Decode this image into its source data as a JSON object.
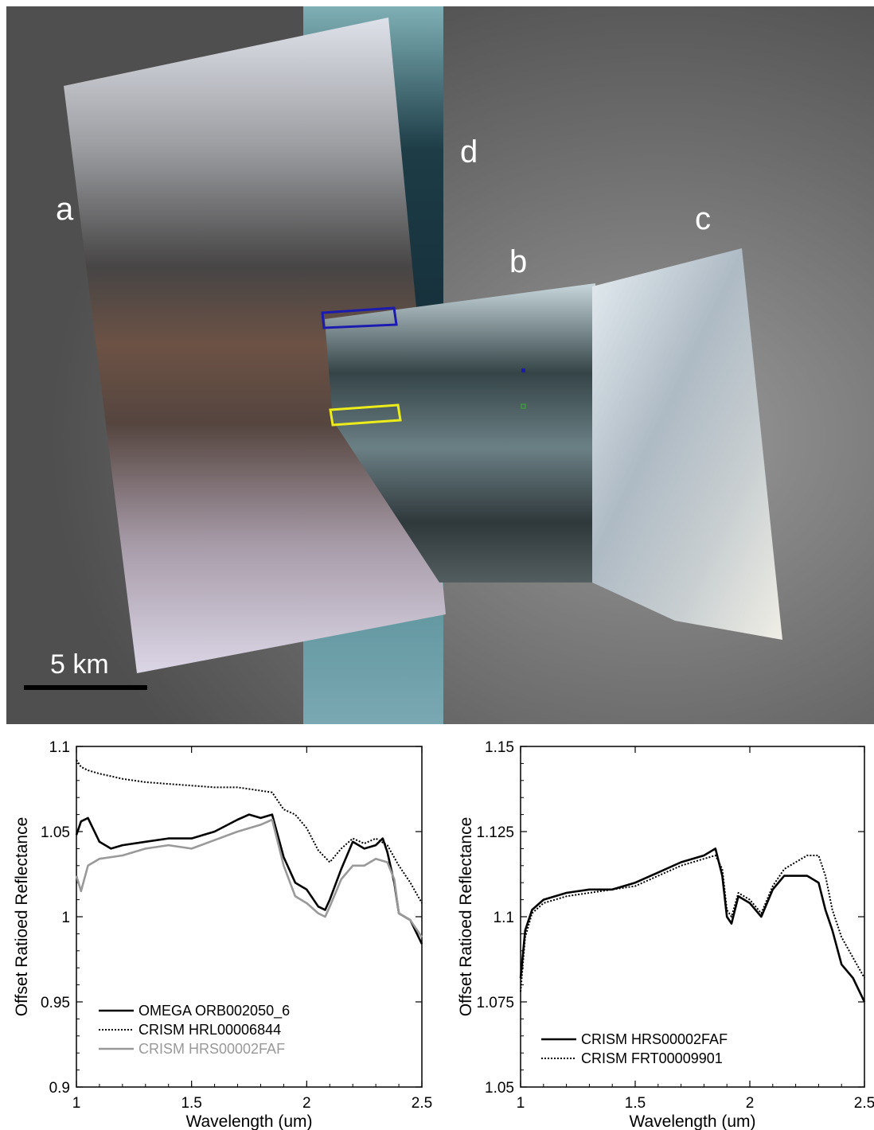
{
  "map": {
    "labels": {
      "a": "a",
      "b": "b",
      "c": "c",
      "d": "d"
    },
    "scale_bar_label": "5 km",
    "colors": {
      "background": "#5b5b5b",
      "box_blue": "#1b1bb0",
      "box_yellow": "#ecec1a",
      "marker_blue": "#1b1bb0",
      "marker_green": "#3c9a3c"
    }
  },
  "chart_data": [
    {
      "type": "line",
      "xlabel": "Wavelength (um)",
      "ylabel": "Offset Ratioed Reflectance",
      "xlim": [
        1,
        2.5
      ],
      "ylim": [
        0.9,
        1.1
      ],
      "xticks": [
        "1",
        "1.5",
        "2",
        "2.5"
      ],
      "yticks": [
        "0.9",
        "0.95",
        "1",
        "1.05",
        "1.1"
      ],
      "legend_position": "bottom-left",
      "series": [
        {
          "name": "OMEGA ORB002050_6",
          "color": "#000000",
          "style": "solid",
          "x": [
            1.0,
            1.02,
            1.05,
            1.1,
            1.15,
            1.2,
            1.3,
            1.4,
            1.5,
            1.6,
            1.7,
            1.75,
            1.8,
            1.85,
            1.9,
            1.95,
            2.0,
            2.05,
            2.08,
            2.1,
            2.15,
            2.2,
            2.25,
            2.3,
            2.33,
            2.35,
            2.38,
            2.4,
            2.45,
            2.5
          ],
          "y": [
            1.048,
            1.056,
            1.058,
            1.044,
            1.04,
            1.042,
            1.044,
            1.046,
            1.046,
            1.05,
            1.057,
            1.06,
            1.058,
            1.06,
            1.035,
            1.02,
            1.016,
            1.006,
            1.004,
            1.01,
            1.028,
            1.044,
            1.04,
            1.042,
            1.046,
            1.038,
            1.02,
            1.002,
            0.998,
            0.984
          ]
        },
        {
          "name": "CRISM HRL00006844",
          "color": "#000000",
          "style": "dotted",
          "x": [
            1.0,
            1.02,
            1.05,
            1.1,
            1.2,
            1.3,
            1.4,
            1.5,
            1.6,
            1.7,
            1.8,
            1.85,
            1.9,
            1.95,
            2.0,
            2.05,
            2.1,
            2.15,
            2.2,
            2.25,
            2.3,
            2.35,
            2.4,
            2.45,
            2.5
          ],
          "y": [
            1.092,
            1.088,
            1.086,
            1.084,
            1.081,
            1.079,
            1.078,
            1.077,
            1.076,
            1.076,
            1.074,
            1.073,
            1.063,
            1.06,
            1.052,
            1.039,
            1.032,
            1.04,
            1.046,
            1.043,
            1.046,
            1.042,
            1.03,
            1.02,
            1.008
          ]
        },
        {
          "name": "CRISM HRS00002FAF",
          "color": "#999999",
          "style": "solid",
          "x": [
            1.0,
            1.02,
            1.05,
            1.1,
            1.2,
            1.3,
            1.4,
            1.5,
            1.6,
            1.7,
            1.8,
            1.85,
            1.9,
            1.95,
            2.0,
            2.05,
            2.08,
            2.1,
            2.15,
            2.2,
            2.25,
            2.3,
            2.35,
            2.38,
            2.4,
            2.45,
            2.5
          ],
          "y": [
            1.024,
            1.015,
            1.03,
            1.034,
            1.036,
            1.04,
            1.042,
            1.04,
            1.045,
            1.05,
            1.054,
            1.057,
            1.03,
            1.012,
            1.008,
            1.002,
            1.0,
            1.006,
            1.022,
            1.03,
            1.03,
            1.034,
            1.032,
            1.022,
            1.002,
            0.998,
            0.988
          ]
        }
      ]
    },
    {
      "type": "line",
      "xlabel": "Wavelength (um)",
      "ylabel": "Offset Ratioed Reflectance",
      "xlim": [
        1,
        2.5
      ],
      "ylim": [
        1.05,
        1.15
      ],
      "xticks": [
        "1",
        "1.5",
        "2",
        "2.5"
      ],
      "yticks": [
        "1.05",
        "1.075",
        "1.1",
        "1.125",
        "1.15"
      ],
      "legend_position": "bottom-left",
      "series": [
        {
          "name": "CRISM HRS00002FAF",
          "color": "#000000",
          "style": "solid",
          "x": [
            1.0,
            1.02,
            1.05,
            1.1,
            1.2,
            1.3,
            1.4,
            1.5,
            1.6,
            1.7,
            1.8,
            1.85,
            1.88,
            1.9,
            1.92,
            1.95,
            2.0,
            2.05,
            2.1,
            2.15,
            2.2,
            2.25,
            2.3,
            2.33,
            2.36,
            2.4,
            2.45,
            2.5
          ],
          "y": [
            1.082,
            1.096,
            1.102,
            1.105,
            1.107,
            1.108,
            1.108,
            1.11,
            1.113,
            1.116,
            1.118,
            1.12,
            1.112,
            1.1,
            1.098,
            1.106,
            1.104,
            1.1,
            1.108,
            1.112,
            1.112,
            1.112,
            1.11,
            1.102,
            1.096,
            1.086,
            1.082,
            1.075
          ]
        },
        {
          "name": "CRISM FRT00009901",
          "color": "#000000",
          "style": "dotted",
          "x": [
            1.0,
            1.02,
            1.05,
            1.1,
            1.2,
            1.3,
            1.4,
            1.5,
            1.6,
            1.7,
            1.8,
            1.85,
            1.88,
            1.9,
            1.92,
            1.95,
            2.0,
            2.05,
            2.1,
            2.15,
            2.2,
            2.25,
            2.3,
            2.33,
            2.36,
            2.4,
            2.45,
            2.5
          ],
          "y": [
            1.078,
            1.094,
            1.101,
            1.104,
            1.106,
            1.107,
            1.108,
            1.109,
            1.112,
            1.115,
            1.117,
            1.118,
            1.114,
            1.102,
            1.1,
            1.107,
            1.105,
            1.101,
            1.109,
            1.114,
            1.116,
            1.118,
            1.118,
            1.112,
            1.102,
            1.094,
            1.088,
            1.082
          ]
        }
      ]
    }
  ]
}
